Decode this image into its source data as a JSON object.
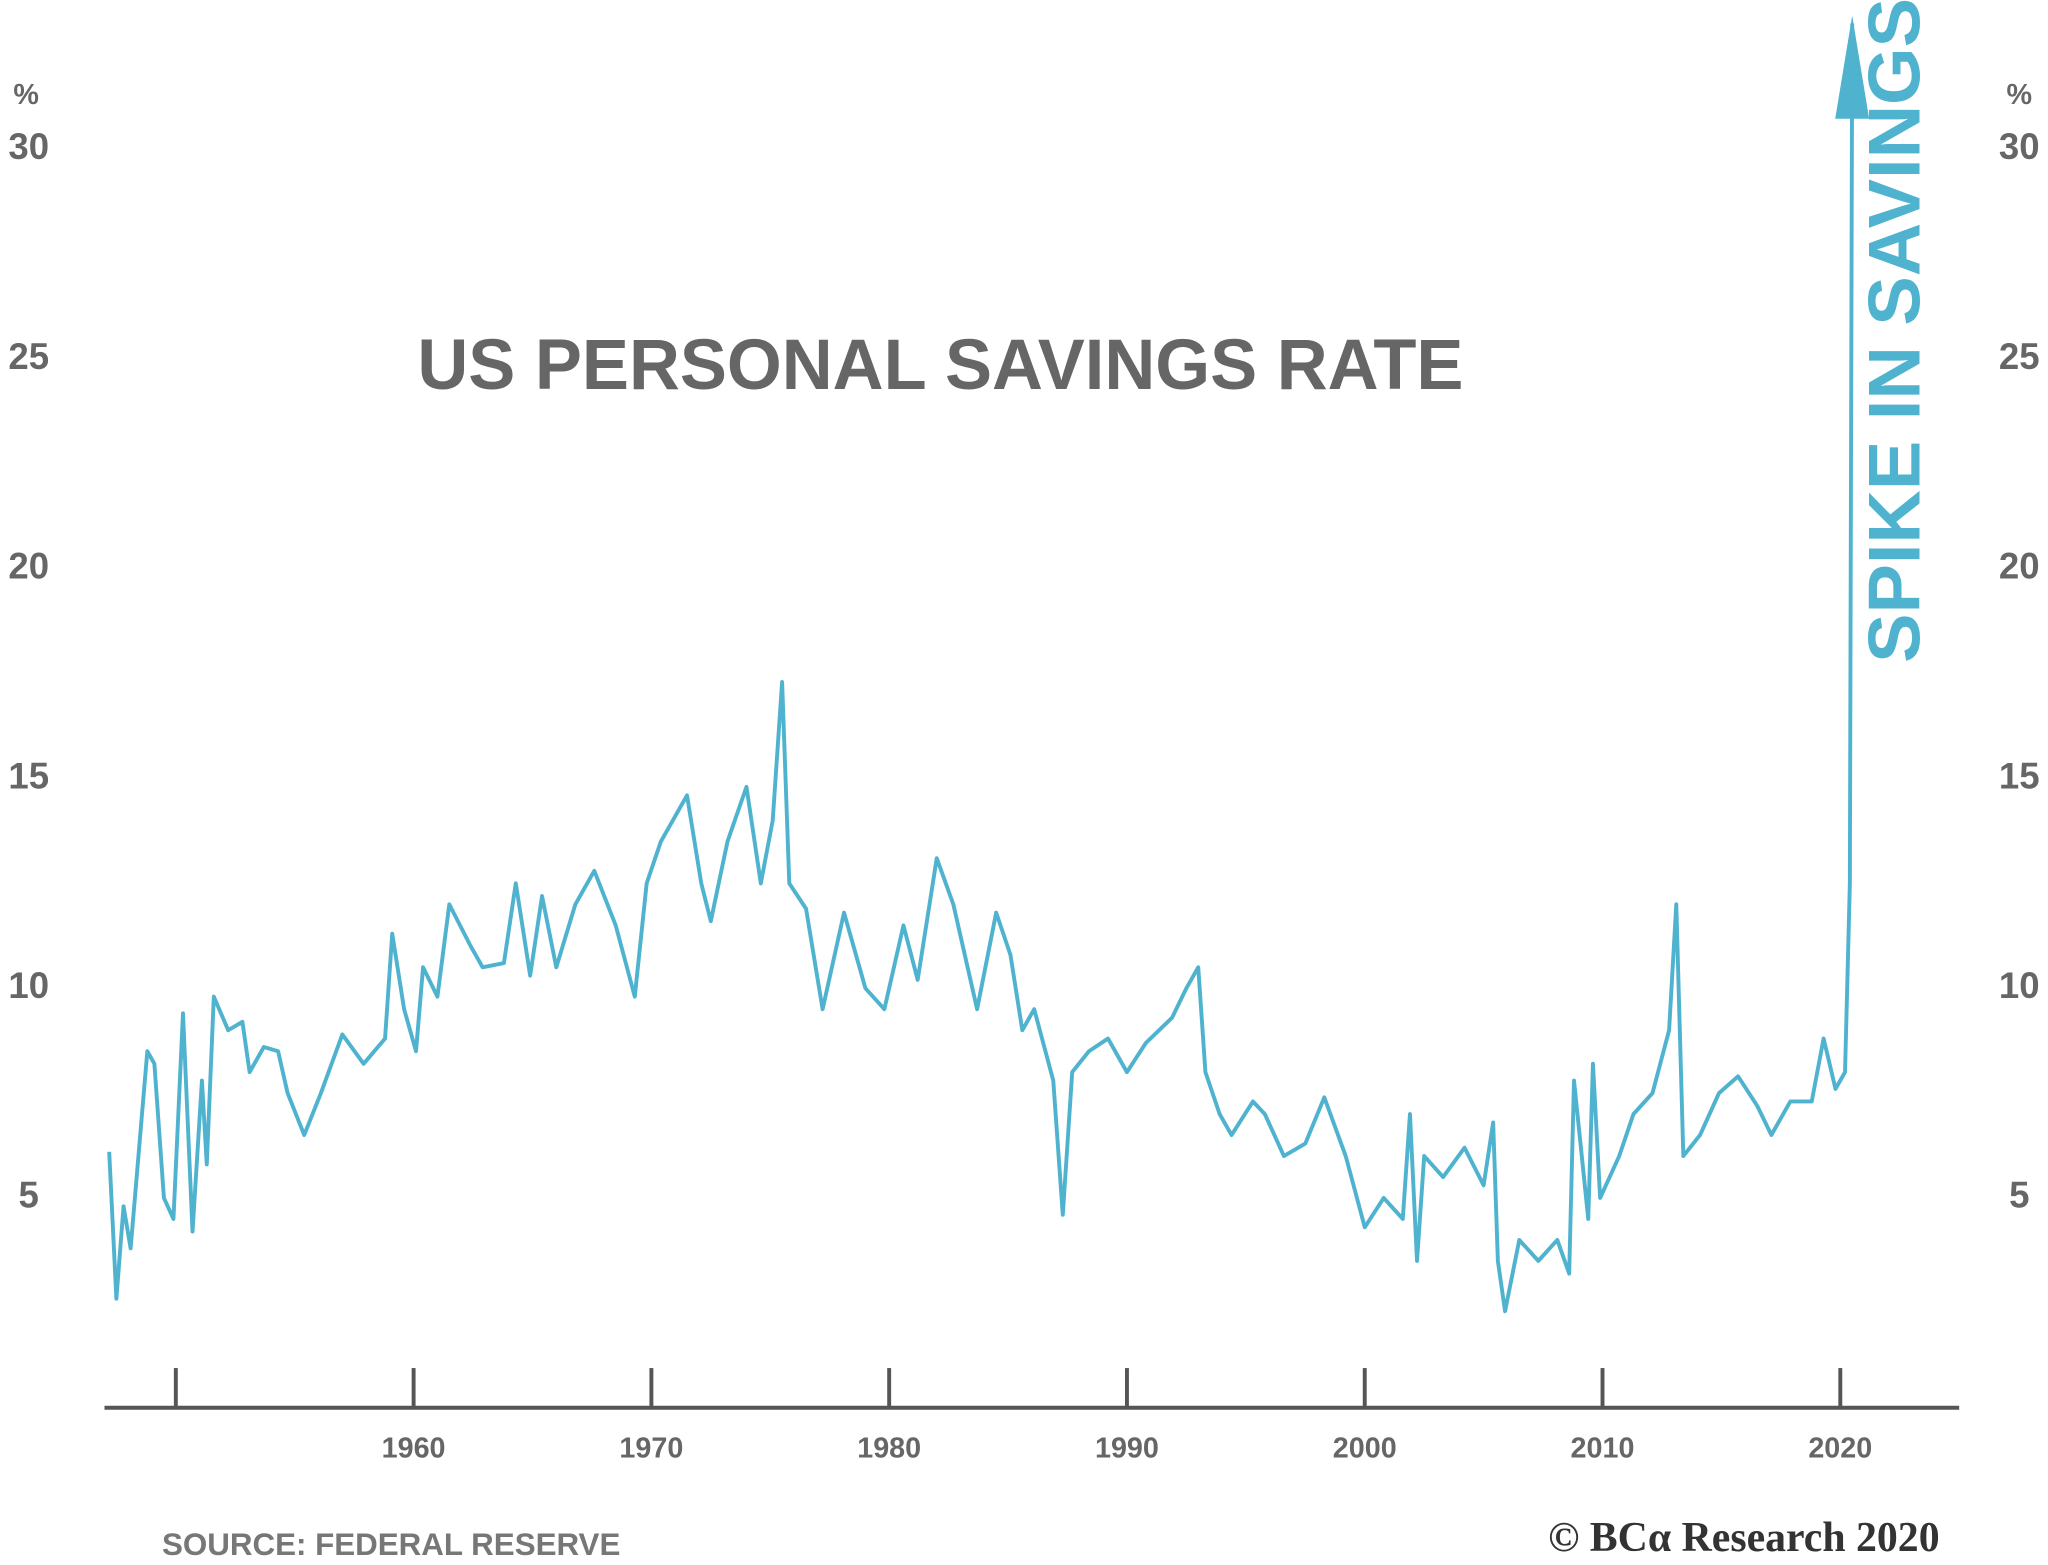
{
  "chart_data": {
    "type": "line",
    "title": "US PERSONAL SAVINGS RATE",
    "y_unit": "%",
    "annotation": "SPIKE IN SAVINGS",
    "source": "SOURCE: FEDERAL RESERVE",
    "credit": "© BCα Research 2020",
    "color": "#4fb3cf",
    "x": [
      1947.2,
      1947.5,
      1947.8,
      1948.1,
      1948.8,
      1949.1,
      1949.5,
      1949.9,
      1950.3,
      1950.7,
      1951.1,
      1951.3,
      1951.6,
      1952.2,
      1952.8,
      1953.1,
      1953.7,
      1954.3,
      1954.7,
      1955.4,
      1956.1,
      1957.0,
      1957.9,
      1958.8,
      1959.1,
      1959.6,
      1960.1,
      1960.4,
      1961.0,
      1961.5,
      1962.4,
      1962.9,
      1963.8,
      1964.3,
      1964.9,
      1965.4,
      1966.0,
      1966.8,
      1967.6,
      1968.5,
      1969.3,
      1969.8,
      1970.4,
      1971.5,
      1972.1,
      1972.5,
      1973.2,
      1974.0,
      1974.6,
      1975.1,
      1975.5,
      1975.8,
      1976.5,
      1977.2,
      1978.1,
      1979.0,
      1979.8,
      1980.6,
      1981.2,
      1982.0,
      1982.7,
      1983.7,
      1984.5,
      1985.1,
      1985.6,
      1986.1,
      1986.9,
      1987.3,
      1987.7,
      1988.4,
      1989.2,
      1990.0,
      1990.8,
      1991.9,
      1992.5,
      1993.0,
      1993.3,
      1993.9,
      1994.4,
      1995.3,
      1995.8,
      1996.6,
      1997.5,
      1998.3,
      1999.2,
      2000.0,
      2000.8,
      2001.6,
      2001.9,
      2002.2,
      2002.5,
      2003.3,
      2004.2,
      2005.0,
      2005.4,
      2005.6,
      2005.9,
      2006.5,
      2007.3,
      2008.1,
      2008.6,
      2008.8,
      2009.4,
      2009.6,
      2009.9,
      2010.7,
      2011.3,
      2012.1,
      2012.8,
      2013.1,
      2013.4,
      2014.1,
      2014.9,
      2015.7,
      2016.5,
      2017.1,
      2017.9,
      2018.8,
      2019.3,
      2019.8,
      2020.2,
      2020.4,
      2020.5
    ],
    "values": [
      6.1,
      2.6,
      4.8,
      3.8,
      8.5,
      8.2,
      5.0,
      4.5,
      9.4,
      4.2,
      7.8,
      5.8,
      9.8,
      9.0,
      9.2,
      8.0,
      8.6,
      8.5,
      7.5,
      6.5,
      7.5,
      8.9,
      8.2,
      8.8,
      11.3,
      9.5,
      8.5,
      10.5,
      9.8,
      12.0,
      11.0,
      10.5,
      10.6,
      12.5,
      10.3,
      12.2,
      10.5,
      12.0,
      12.8,
      11.5,
      9.8,
      12.5,
      13.5,
      14.6,
      12.5,
      11.6,
      13.5,
      14.8,
      12.5,
      14.0,
      17.3,
      12.5,
      11.9,
      9.5,
      11.8,
      10.0,
      9.5,
      11.5,
      10.2,
      13.1,
      12.0,
      9.5,
      11.8,
      10.8,
      9.0,
      9.5,
      7.8,
      4.6,
      8.0,
      8.5,
      8.8,
      8.0,
      8.7,
      9.3,
      10.0,
      10.5,
      8.0,
      7.0,
      6.5,
      7.3,
      7.0,
      6.0,
      6.3,
      7.4,
      6.0,
      4.3,
      5.0,
      4.5,
      7.0,
      3.5,
      6.0,
      5.5,
      6.2,
      5.3,
      6.8,
      3.5,
      2.3,
      4.0,
      3.5,
      4.0,
      3.2,
      7.8,
      4.5,
      8.2,
      5.0,
      6.0,
      7.0,
      7.5,
      9.0,
      12.0,
      6.0,
      6.5,
      7.5,
      7.9,
      7.2,
      6.5,
      7.3,
      7.3,
      8.8,
      7.6,
      8.0,
      12.5,
      33
    ],
    "xlim": [
      1947,
      2025
    ],
    "ylim": [
      0,
      30
    ],
    "xticks": [
      {
        "value": 1950,
        "label": null
      },
      1960,
      1970,
      1980,
      1990,
      2000,
      2010,
      2020
    ],
    "yticks": [
      5,
      10,
      15,
      20,
      25,
      30
    ]
  }
}
